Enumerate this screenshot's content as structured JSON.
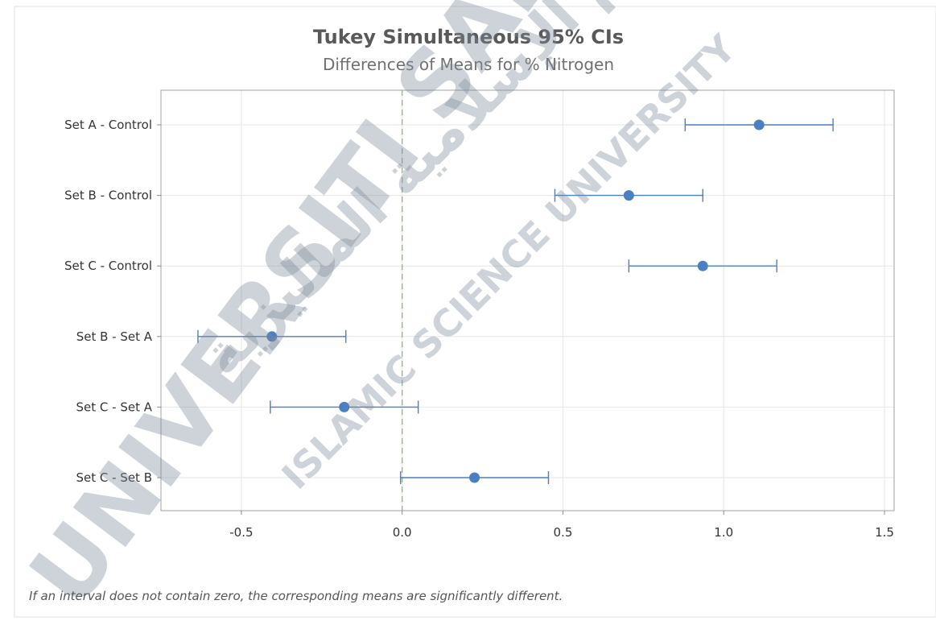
{
  "chart_data": {
    "type": "interval",
    "title": "Tukey Simultaneous 95% CIs",
    "subtitle": "Differences of Means for % Nitrogen",
    "footnote": "If an interval does not contain zero, the corresponding means are significantly different.",
    "categories": [
      "Set A - Control",
      "Set B - Control",
      "Set C - Control",
      "Set B - Set A",
      "Set C - Set A",
      "Set C - Set B"
    ],
    "estimates": [
      1.11,
      0.705,
      0.935,
      -0.405,
      -0.18,
      0.225
    ],
    "lower": [
      0.88,
      0.475,
      0.705,
      -0.635,
      -0.41,
      -0.005
    ],
    "upper": [
      1.34,
      0.935,
      1.165,
      -0.175,
      0.05,
      0.455
    ],
    "xlim": [
      -0.75,
      1.53
    ],
    "xticks": [
      -0.5,
      0.0,
      0.5,
      1.0,
      1.5
    ],
    "xtick_labels": [
      "-0.5",
      "0.0",
      "0.5",
      "1.0",
      "1.5"
    ],
    "reference_line": 0,
    "grid": true,
    "colors": {
      "interval": "#4a7fc1",
      "marker": "#4a7fc1",
      "reference": "#7dbf7d",
      "grid": "#e6e6e6",
      "frame": "#a0a0a0"
    }
  },
  "watermark": {
    "line1": "UNIVERSITI SAINS",
    "line2": "ISLAMIC SCIENCE UNIVERSITY",
    "arabic": "جامعة العلوم الإسلامية الماليزية"
  }
}
